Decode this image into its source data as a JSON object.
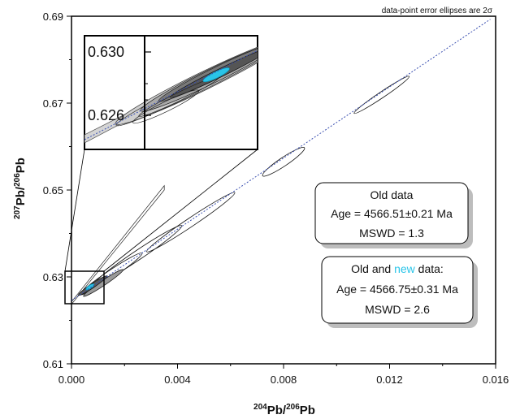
{
  "chart_data": {
    "type": "scatter",
    "title": "",
    "xlabel_parts": [
      "204",
      "Pb/",
      "206",
      "Pb"
    ],
    "ylabel_parts": [
      "207",
      "Pb/",
      "206",
      "Pb"
    ],
    "xlim": [
      0.0,
      0.016
    ],
    "ylim": [
      0.61,
      0.69
    ],
    "x_ticks": [
      "0.000",
      "0.004",
      "0.008",
      "0.012",
      "0.016"
    ],
    "x_tick_values": [
      0.0,
      0.004,
      0.008,
      0.012,
      0.016
    ],
    "y_ticks": [
      "0.61",
      "0.63",
      "0.65",
      "0.67",
      "0.69"
    ],
    "y_tick_values": [
      0.61,
      0.63,
      0.65,
      0.67,
      0.69
    ],
    "grid": false,
    "note": "data-point error ellipses are 2σ",
    "isochron_line": {
      "x": [
        0.0,
        0.0158
      ],
      "y": [
        0.6246,
        0.6893
      ]
    },
    "ellipses": [
      {
        "x": 0.0117,
        "y": 0.6719,
        "a": 0.00125,
        "b": 7e-05,
        "fill": "none"
      },
      {
        "x": 0.008,
        "y": 0.6565,
        "a": 0.00095,
        "b": 0.0001,
        "fill": "none"
      },
      {
        "x": 0.0045,
        "y": 0.6426,
        "a": 0.002,
        "b": 0.0001,
        "fill": "none"
      },
      {
        "x": 0.0025,
        "y": 0.635,
        "a": 0.002,
        "b": 0.00011,
        "fill": "none"
      },
      {
        "x": 0.0015,
        "y": 0.6307,
        "a": 0.0014,
        "b": 9e-05,
        "fill": "none"
      },
      {
        "x": 0.0012,
        "y": 0.6286,
        "a": 0.0009,
        "b": 6e-05,
        "fill": "#9a9a9a"
      },
      {
        "x": 0.0008,
        "y": 0.628,
        "a": 0.00065,
        "b": 5e-05,
        "fill": "#5a5a5a"
      },
      {
        "x": 0.0007,
        "y": 0.6277,
        "a": 0.00018,
        "b": 4e-05,
        "fill": "#29c4e8"
      }
    ],
    "inset": {
      "y_ticks": [
        "0.630",
        "0.626"
      ]
    },
    "annotations": {
      "old": {
        "title": "Old data",
        "age": "Age = 4566.51±0.21 Ma",
        "mswd": "MSWD = 1.3"
      },
      "new": {
        "title_prefix": "Old and ",
        "title_new": "new",
        "title_suffix": " data:",
        "age": "Age = 4566.75±0.31 Ma",
        "mswd": "MSWD = 2.6"
      }
    },
    "colors": {
      "highlight": "#29c4e8",
      "isochron": "#3a4fb0",
      "gray_fill": "#d6d6d6",
      "dark_fill": "#4a4a4a"
    }
  }
}
